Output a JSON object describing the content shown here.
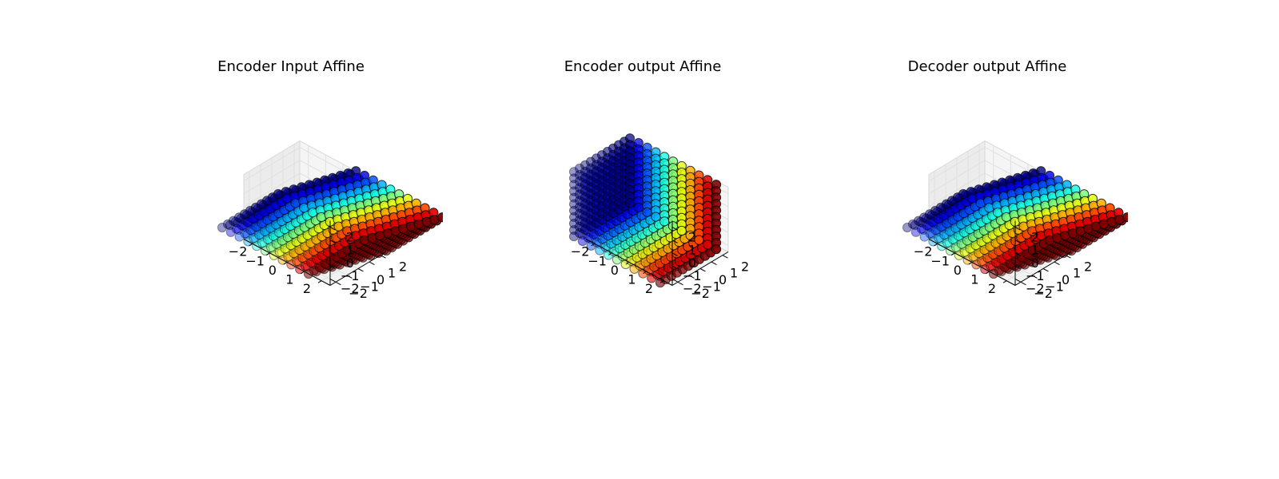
{
  "chart_data": [
    {
      "type": "scatter",
      "title": "Encoder Input Affine",
      "grid": true,
      "colormap": "jet",
      "grid_values": [
        -2.5,
        -2.0,
        -1.5,
        -1.0,
        -0.5,
        0.0,
        0.5,
        1.0,
        1.5,
        2.0,
        2.5
      ],
      "transform": "affine-sheared",
      "x_ticks": [
        "−2",
        "−1",
        "0",
        "1",
        "2"
      ],
      "y_ticks": [
        "−2",
        "−1",
        "0",
        "1",
        "2"
      ],
      "z_ticks": [
        "−2",
        "−1",
        "0",
        "1",
        "2"
      ],
      "xlim": [
        -2.5,
        2.5
      ],
      "ylim": [
        -2.5,
        2.5
      ],
      "zlim": [
        -2.5,
        2.5
      ]
    },
    {
      "type": "scatter",
      "title": "Encoder output Affine",
      "grid": true,
      "colormap": "jet",
      "grid_values": [
        -2.5,
        -2.0,
        -1.5,
        -1.0,
        -0.5,
        0.0,
        0.5,
        1.0,
        1.5,
        2.0,
        2.5
      ],
      "transform": "identity",
      "x_ticks": [
        "−2",
        "−1",
        "0",
        "1",
        "2"
      ],
      "y_ticks": [
        "−2",
        "−1",
        "0",
        "1",
        "2"
      ],
      "z_ticks": [
        "−2",
        "−1",
        "0",
        "1",
        "2"
      ],
      "xlim": [
        -2.5,
        2.5
      ],
      "ylim": [
        -2.5,
        2.5
      ],
      "zlim": [
        -2.5,
        2.5
      ]
    },
    {
      "type": "scatter",
      "title": "Decoder output Affine",
      "grid": true,
      "colormap": "jet",
      "grid_values": [
        -2.5,
        -2.0,
        -1.5,
        -1.0,
        -0.5,
        0.0,
        0.5,
        1.0,
        1.5,
        2.0,
        2.5
      ],
      "transform": "affine-sheared",
      "x_ticks": [
        "−2",
        "−1",
        "0",
        "1",
        "2"
      ],
      "y_ticks": [
        "−2",
        "−1",
        "0",
        "1",
        "2"
      ],
      "z_ticks": [
        "−2",
        "−1",
        "0",
        "1",
        "2"
      ],
      "xlim": [
        -2.5,
        2.5
      ],
      "ylim": [
        -2.5,
        2.5
      ],
      "zlim": [
        -2.5,
        2.5
      ]
    }
  ]
}
